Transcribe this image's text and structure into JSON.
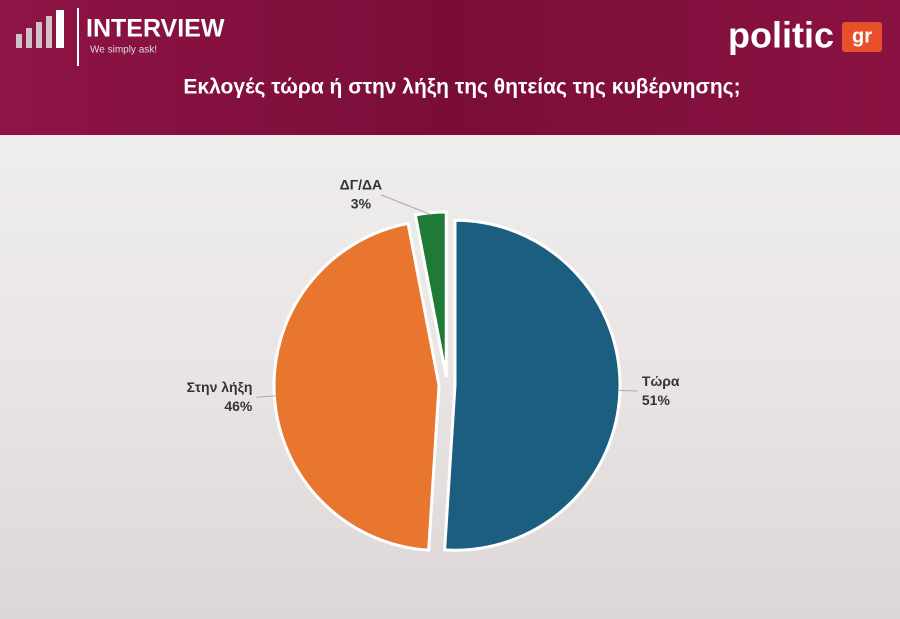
{
  "branding": {
    "brand": "INTERVIEW",
    "tagline": "We simply ask!",
    "logo": "politic",
    "logo_suffix": "gr"
  },
  "chart_data": {
    "type": "pie",
    "title": "Εκλογές τώρα ή στην λήξη της θητείας της κυβέρνησης;",
    "categories": [
      "Τώρα",
      "Στην λήξη",
      "ΔΓ/ΔΑ"
    ],
    "values": [
      51,
      46,
      3
    ],
    "value_labels": [
      "51%",
      "46%",
      "3%"
    ],
    "colors": [
      "#1b5e80",
      "#e8762f",
      "#1f7a35"
    ]
  }
}
